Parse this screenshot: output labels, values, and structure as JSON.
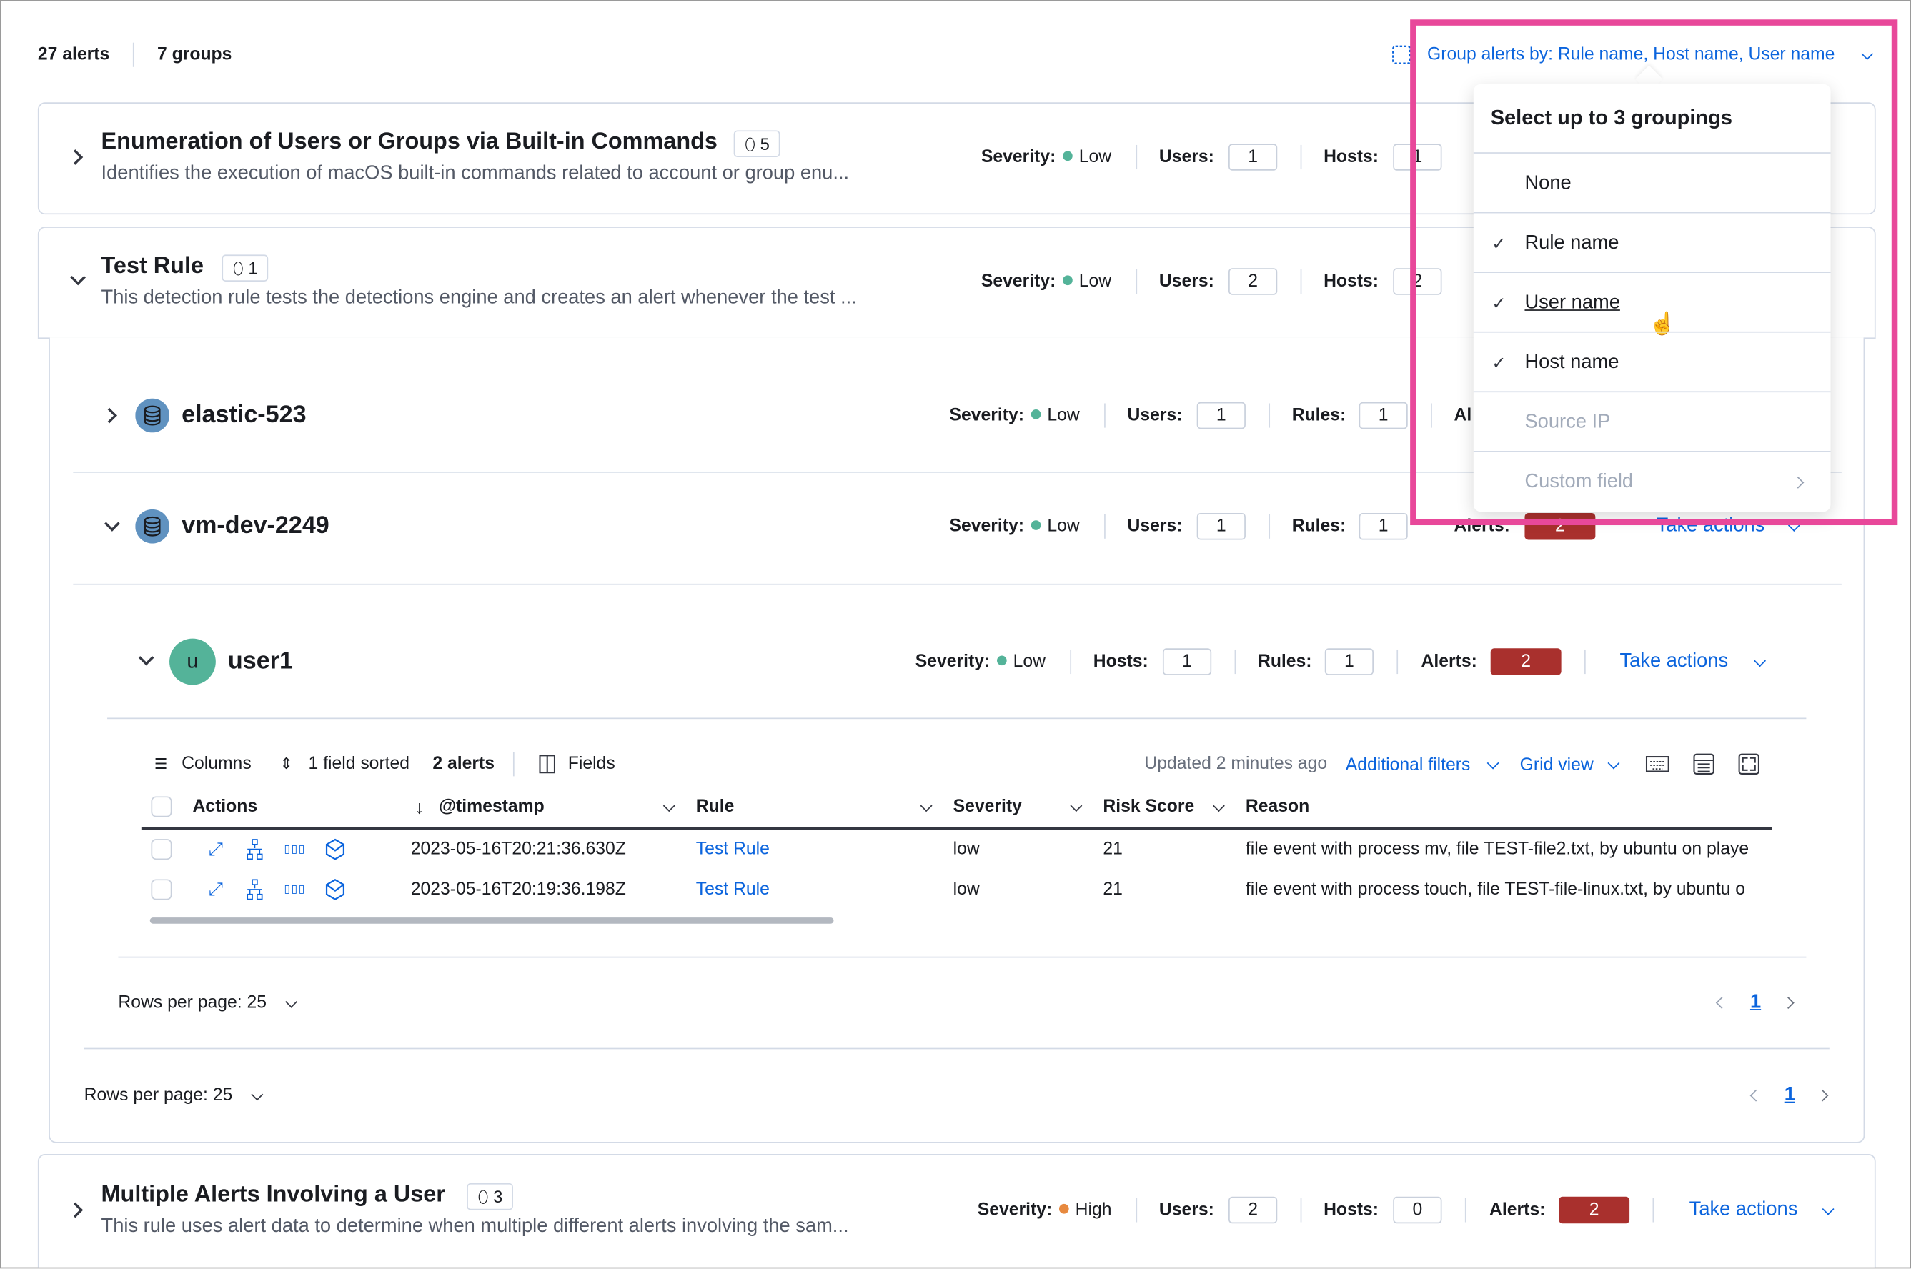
{
  "header": {
    "alerts_count": "27 alerts",
    "groups_count": "7 groups",
    "group_by_label": "Group alerts by: Rule name, Host name, User name"
  },
  "dropdown": {
    "title": "Select up to 3 groupings",
    "options": [
      {
        "label": "None",
        "checked": false,
        "disabled": false
      },
      {
        "label": "Rule name",
        "checked": true,
        "disabled": false
      },
      {
        "label": "User name",
        "checked": true,
        "disabled": false,
        "hovered": true
      },
      {
        "label": "Host name",
        "checked": true,
        "disabled": false
      },
      {
        "label": "Source IP",
        "checked": false,
        "disabled": true
      },
      {
        "label": "Custom field",
        "checked": false,
        "disabled": true,
        "has_submenu": true
      }
    ]
  },
  "labels": {
    "severity": "Severity:",
    "users": "Users:",
    "hosts": "Hosts:",
    "rules": "Rules:",
    "alerts": "Alerts:",
    "alerts_cut": "Al",
    "take_actions": "Take actions",
    "rows_per_page": "Rows per page: 25",
    "page": "1"
  },
  "colors": {
    "low": "#54b399",
    "high": "#e7893f",
    "alert_badge": "#a9302d",
    "link": "#0b64dd",
    "highlight_box": "#e8489a"
  },
  "groups": [
    {
      "title": "Enumeration of Users or Groups via Built-in Commands",
      "tag_count": "5",
      "description": "Identifies the execution of macOS built-in commands related to account or group enu...",
      "severity": "Low",
      "users": "1",
      "hosts": "1",
      "expanded": false
    },
    {
      "title": "Test Rule",
      "tag_count": "1",
      "description": "This detection rule tests the detections engine and creates an alert whenever the test ...",
      "severity": "Low",
      "users": "2",
      "hosts": "2",
      "expanded": true,
      "subgroups": [
        {
          "name": "elastic-523",
          "severity": "Low",
          "users": "1",
          "rules": "1",
          "expanded": false
        },
        {
          "name": "vm-dev-2249",
          "severity": "Low",
          "users": "1",
          "rules": "1",
          "alerts": "2",
          "expanded": true,
          "subgroups": [
            {
              "name": "user1",
              "avatar": "u",
              "severity": "Low",
              "hosts": "1",
              "rules": "1",
              "alerts": "2",
              "expanded": true
            }
          ]
        }
      ]
    },
    {
      "title": "Multiple Alerts Involving a User",
      "tag_count": "3",
      "description": "This rule uses alert data to determine when multiple different alerts involving the sam...",
      "severity": "High",
      "users": "2",
      "hosts": "0",
      "alerts": "2",
      "expanded": false
    }
  ],
  "table": {
    "toolbar": {
      "columns": "Columns",
      "sorted": "1 field sorted",
      "alerts": "2 alerts",
      "fields": "Fields",
      "updated": "Updated 2 minutes ago",
      "additional_filters": "Additional filters",
      "grid_view": "Grid view"
    },
    "columns": [
      "Actions",
      "@timestamp",
      "Rule",
      "Severity",
      "Risk Score",
      "Reason"
    ],
    "rows": [
      {
        "timestamp": "2023-05-16T20:21:36.630Z",
        "rule": "Test Rule",
        "severity": "low",
        "risk_score": "21",
        "reason": "file event with process mv, file TEST-file2.txt, by ubuntu on playe"
      },
      {
        "timestamp": "2023-05-16T20:19:36.198Z",
        "rule": "Test Rule",
        "severity": "low",
        "risk_score": "21",
        "reason": "file event with process touch, file TEST-file-linux.txt, by ubuntu o"
      }
    ]
  }
}
